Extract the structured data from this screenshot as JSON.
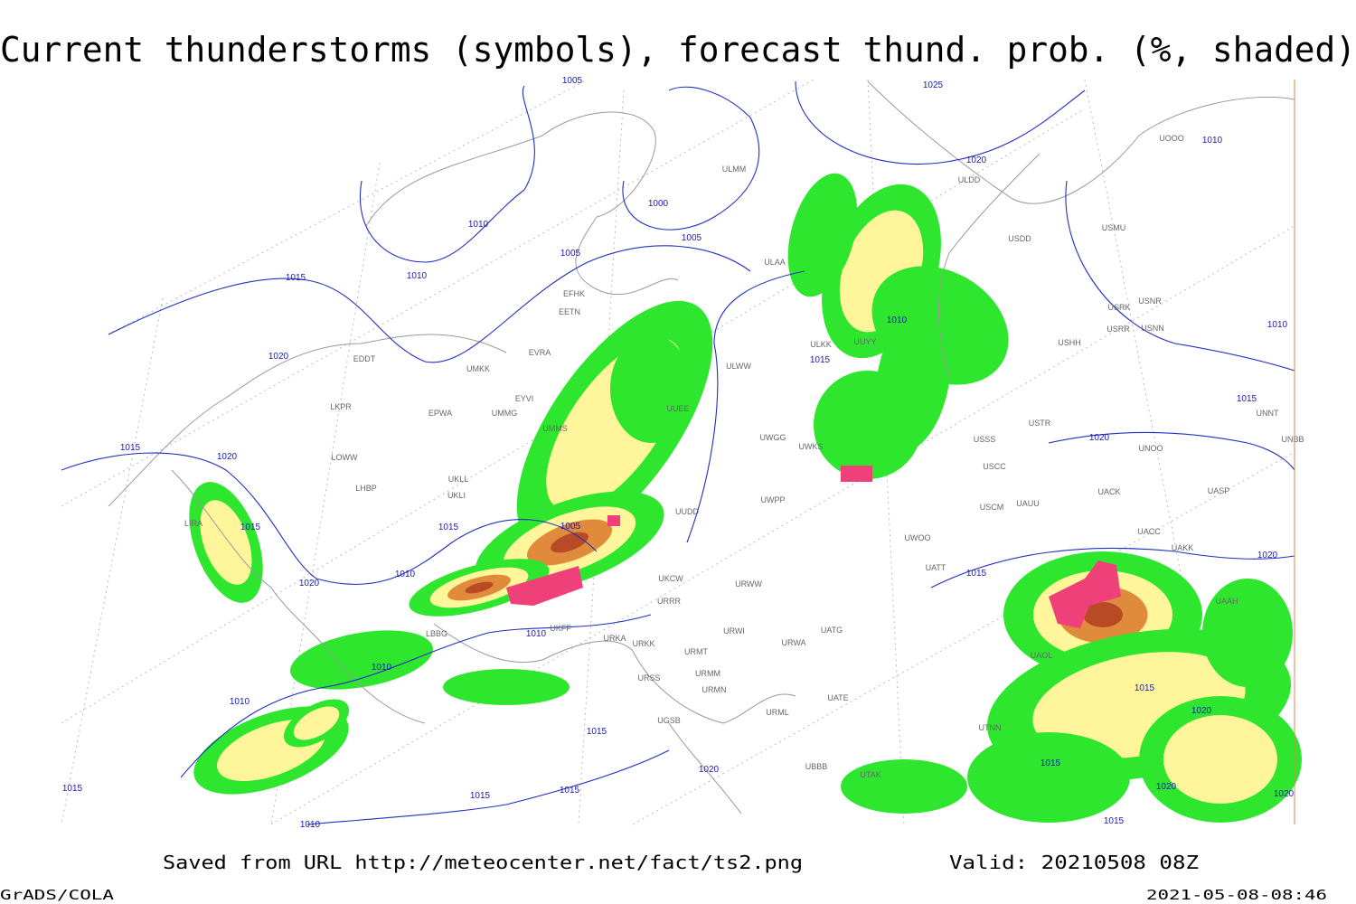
{
  "title": "Current thunderstorms (symbols), forecast thund. prob. (%, shaded)",
  "footer": {
    "source": "Saved from URL http://meteocenter.net/fact/ts2.png",
    "valid": "Valid: 20210508 08Z",
    "software": "GrADS/COLA",
    "timestamp": "2021-05-08-08:46"
  },
  "isobar_labels": [
    1005,
    1025,
    1010,
    1000,
    1005,
    1005,
    1015,
    1010,
    1020,
    1010,
    1010,
    1010,
    1020,
    1015,
    1015,
    1015,
    1020,
    1020,
    1015,
    1015,
    1005,
    1010,
    1020,
    1015,
    1020,
    1010,
    1010,
    1010,
    1015,
    1015,
    1020,
    1020,
    1015,
    1015,
    1015,
    1015,
    1010,
    1015,
    1020,
    1020
  ],
  "stations": [
    "EFHK",
    "EETN",
    "EVRA",
    "EDDT",
    "EPWA",
    "UMKK",
    "LKPR",
    "LOWW",
    "LHBP",
    "UMMS",
    "UMMG",
    "EYVI",
    "UKLL",
    "UKLI",
    "LIRA",
    "LBBG",
    "UKFF",
    "URKA",
    "URKK",
    "URSS",
    "UGSB",
    "URMT",
    "URMM",
    "URMN",
    "URWI",
    "URWW",
    "URRR",
    "UKCW",
    "UUDD",
    "UWPP",
    "UWKS",
    "UWGG",
    "ULWW",
    "ULKK",
    "UUYY",
    "ULAA",
    "ULMM",
    "UUEE",
    "USSS",
    "USCC",
    "USTR",
    "USCM",
    "UAUU",
    "UWOO",
    "UATT",
    "UATG",
    "URWA",
    "UATE",
    "URML",
    "UBBB",
    "UTAK",
    "UTNN",
    "UAOL",
    "UACC",
    "UAKK",
    "UAAH",
    "UNOO",
    "UACK",
    "UASP",
    "UNBB",
    "UNNT",
    "USHH",
    "USRR",
    "USNN",
    "USRK",
    "USNR",
    "USMU",
    "USDD",
    "ULDD",
    "UOOO"
  ]
}
